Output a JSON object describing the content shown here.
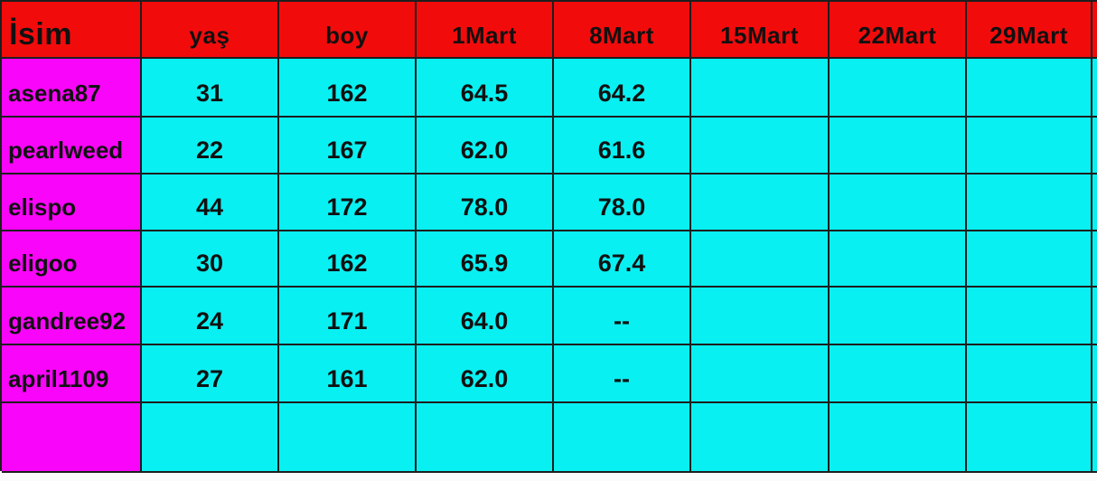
{
  "table": {
    "columns": [
      {
        "key": "isim",
        "label": "İsim"
      },
      {
        "key": "yas",
        "label": "yaş"
      },
      {
        "key": "boy",
        "label": "boy"
      },
      {
        "key": "1mart",
        "label": "1Mart"
      },
      {
        "key": "8mart",
        "label": "8Mart"
      },
      {
        "key": "15mart",
        "label": "15Mart"
      },
      {
        "key": "22mart",
        "label": "22Mart"
      },
      {
        "key": "29mart",
        "label": "29Mart"
      }
    ],
    "rows": [
      [
        "asena87",
        "31",
        "162",
        "64.5",
        "64.2",
        "",
        "",
        ""
      ],
      [
        "pearlweed",
        "22",
        "167",
        "62.0",
        "61.6",
        "",
        "",
        ""
      ],
      [
        "elispo",
        "44",
        "172",
        "78.0",
        "78.0",
        "",
        "",
        ""
      ],
      [
        "eligoo",
        "30",
        "162",
        "65.9",
        "67.4",
        "",
        "",
        ""
      ],
      [
        "gandree92",
        "24",
        "171",
        "64.0",
        "--",
        "",
        "",
        ""
      ],
      [
        "april1109",
        "27",
        "161",
        "62.0",
        "--",
        "",
        "",
        ""
      ],
      [
        "",
        "",
        "",
        "",
        "",
        "",
        "",
        ""
      ]
    ]
  },
  "colors": {
    "header_bg": "#f20b0b",
    "name_column_bg": "#f905f9",
    "data_cell_bg": "#09f0f2",
    "grid_border": "#1e1e1e",
    "text": "#111111"
  }
}
